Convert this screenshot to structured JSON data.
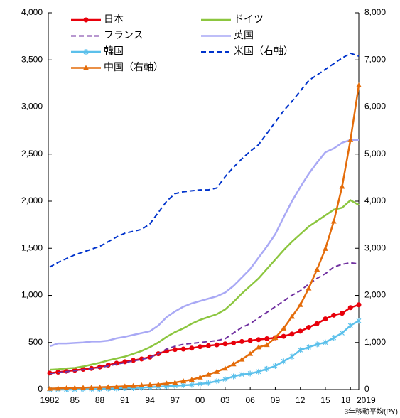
{
  "chart_data": {
    "type": "line",
    "x_note": "3年移動平均(PY)",
    "categories": [
      "1982",
      null,
      null,
      "85",
      null,
      null,
      "88",
      null,
      null,
      "91",
      null,
      null,
      "94",
      null,
      null,
      "97",
      null,
      null,
      "00",
      null,
      null,
      "03",
      null,
      null,
      "06",
      null,
      null,
      "09",
      null,
      null,
      "12",
      null,
      null,
      "15",
      null,
      null,
      "18",
      "2019"
    ],
    "ylim": [
      0,
      4000
    ],
    "yticks": [
      0,
      500,
      {
        "value": 1000,
        "label": "1,000"
      },
      {
        "value": 1500,
        "label": "1,500"
      },
      {
        "value": 2000,
        "label": "2,000"
      },
      {
        "value": 2500,
        "label": "2,500"
      },
      {
        "value": 3000,
        "label": "3,000"
      },
      {
        "value": 3500,
        "label": "3,500"
      },
      {
        "value": 4000,
        "label": "4,000"
      }
    ],
    "y2lim": [
      0,
      8000
    ],
    "y2ticks": [
      0,
      {
        "value": 1000,
        "label": "1,000"
      },
      {
        "value": 2000,
        "label": "2,000"
      },
      {
        "value": 3000,
        "label": "3,000"
      },
      {
        "value": 4000,
        "label": "4,000"
      },
      {
        "value": 5000,
        "label": "5,000"
      },
      {
        "value": 6000,
        "label": "6,000"
      },
      {
        "value": 7000,
        "label": "7,000"
      },
      {
        "value": 8000,
        "label": "8,000"
      }
    ],
    "grid": false,
    "series": [
      {
        "name": "日本",
        "color": "#e8000b",
        "marker": "circle",
        "dash": false,
        "values": [
          175,
          185,
          195,
          205,
          215,
          225,
          240,
          260,
          280,
          295,
          310,
          325,
          345,
          380,
          410,
          425,
          430,
          440,
          455,
          465,
          475,
          485,
          495,
          510,
          520,
          530,
          540,
          550,
          565,
          590,
          620,
          660,
          700,
          750,
          790,
          810,
          870,
          900
        ]
      },
      {
        "name": "ドイツ",
        "color": "#8cc63f",
        "marker": "none",
        "dash": false,
        "values": [
          210,
          215,
          225,
          230,
          245,
          265,
          285,
          310,
          330,
          350,
          380,
          410,
          450,
          500,
          560,
          610,
          650,
          700,
          740,
          770,
          800,
          850,
          930,
          1020,
          1100,
          1180,
          1280,
          1380,
          1480,
          1570,
          1650,
          1730,
          1790,
          1850,
          1910,
          1930,
          2010,
          1960
        ]
      },
      {
        "name": "フランス",
        "color": "#7030a0",
        "marker": "none",
        "dash": true,
        "values": [
          170,
          180,
          190,
          200,
          210,
          220,
          235,
          250,
          270,
          285,
          305,
          320,
          340,
          380,
          430,
          460,
          480,
          490,
          500,
          510,
          520,
          540,
          600,
          660,
          700,
          760,
          820,
          880,
          940,
          1000,
          1050,
          1120,
          1180,
          1230,
          1300,
          1330,
          1345,
          1335
        ]
      },
      {
        "name": "英国",
        "color": "#a9a9f5",
        "marker": "none",
        "dash": false,
        "values": [
          460,
          490,
          490,
          495,
          500,
          510,
          510,
          520,
          545,
          560,
          580,
          600,
          620,
          680,
          770,
          830,
          880,
          915,
          940,
          965,
          990,
          1030,
          1100,
          1190,
          1280,
          1400,
          1520,
          1650,
          1830,
          2000,
          2150,
          2290,
          2410,
          2520,
          2560,
          2620,
          2650,
          2650
        ]
      },
      {
        "name": "韓国",
        "color": "#5bc0eb",
        "marker": "star",
        "dash": false,
        "values": [
          0,
          0,
          0,
          0,
          5,
          5,
          5,
          10,
          10,
          15,
          15,
          20,
          25,
          30,
          35,
          40,
          45,
          50,
          60,
          70,
          90,
          110,
          140,
          160,
          170,
          190,
          220,
          250,
          300,
          350,
          420,
          450,
          480,
          500,
          550,
          600,
          680,
          730
        ]
      },
      {
        "name": "米国（右軸）",
        "color": "#0033cc",
        "marker": "none",
        "dash": true,
        "axis": "y2",
        "values": [
          2600,
          2700,
          2780,
          2860,
          2920,
          2980,
          3040,
          3140,
          3240,
          3320,
          3360,
          3400,
          3520,
          3760,
          4000,
          4160,
          4200,
          4220,
          4240,
          4240,
          4280,
          4520,
          4720,
          4900,
          5060,
          5200,
          5440,
          5680,
          5920,
          6120,
          6340,
          6560,
          6680,
          6800,
          6920,
          7040,
          7140,
          7080
        ]
      },
      {
        "name": "中国（右軸）",
        "color": "#e46c0a",
        "marker": "triangle",
        "dash": false,
        "axis": "y2",
        "values": [
          20,
          25,
          30,
          35,
          40,
          45,
          50,
          55,
          60,
          70,
          80,
          90,
          100,
          110,
          130,
          150,
          180,
          210,
          260,
          320,
          380,
          450,
          540,
          640,
          760,
          900,
          950,
          1100,
          1300,
          1550,
          1800,
          2150,
          2550,
          2990,
          3570,
          4310,
          5300,
          6460
        ]
      }
    ]
  }
}
